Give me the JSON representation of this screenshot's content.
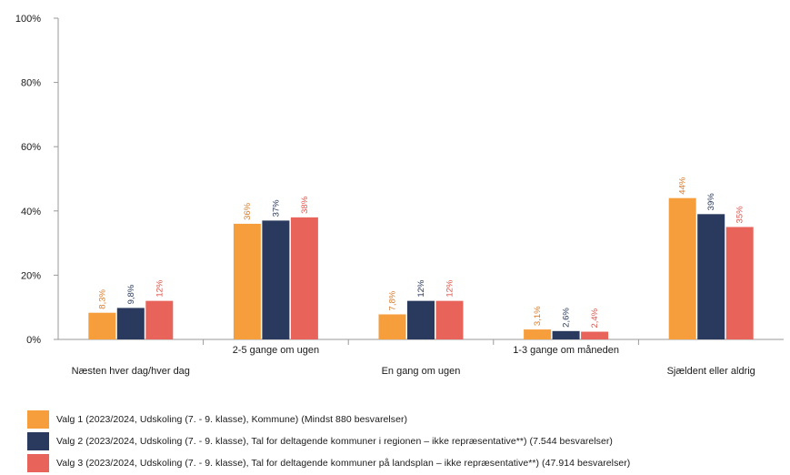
{
  "chart_data": {
    "type": "bar",
    "categories": [
      "Næsten hver dag/hver dag",
      "2-5 gange om ugen",
      "En gang om ugen",
      "1-3 gange om måneden",
      "Sjældent eller aldrig"
    ],
    "series": [
      {
        "name": "Valg 1 (2023/2024, Udskoling (7. - 9. klasse), Kommune) (Mindst 880 besvarelser)",
        "color": "#F79E3C",
        "label_color": "#D97B2A",
        "values": [
          8.3,
          36,
          7.8,
          3.1,
          44
        ],
        "labels": [
          "8,3%",
          "36%",
          "7,8%",
          "3,1%",
          "44%"
        ]
      },
      {
        "name": "Valg 2 (2023/2024, Udskoling (7. - 9. klasse), Tal for deltagende kommuner i regionen – ikke repræsentative**) (7.544 besvarelser)",
        "color": "#293A5E",
        "label_color": "#293A5E",
        "values": [
          9.8,
          37,
          12,
          2.6,
          39
        ],
        "labels": [
          "9,8%",
          "37%",
          "12%",
          "2,6%",
          "39%"
        ]
      },
      {
        "name": "Valg 3 (2023/2024, Udskoling (7. - 9. klasse), Tal for deltagende kommuner på landsplan – ikke repræsentative**) (47.914 besvarelser)",
        "color": "#E8645A",
        "label_color": "#E0554B",
        "values": [
          12,
          38,
          12,
          2.4,
          35
        ],
        "labels": [
          "12%",
          "38%",
          "12%",
          "2,4%",
          "35%"
        ]
      }
    ],
    "y_ticks": [
      "0%",
      "20%",
      "40%",
      "60%",
      "80%",
      "100%"
    ],
    "ylim": [
      0,
      100
    ],
    "grid": false,
    "legend_position": "bottom"
  }
}
